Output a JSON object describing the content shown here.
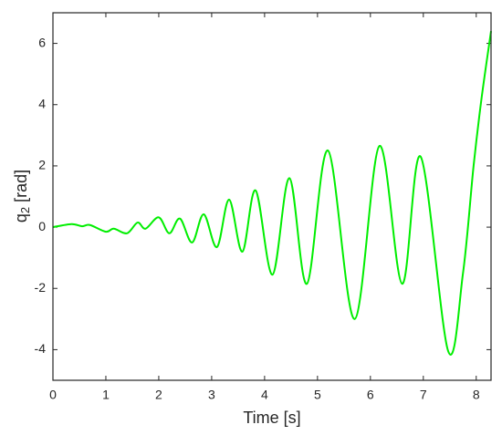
{
  "chart_data": {
    "type": "line",
    "xlabel": "Time [s]",
    "ylabel": [
      "q",
      "2",
      "[rad]"
    ],
    "xlim": [
      0,
      8.28
    ],
    "ylim": [
      -5,
      7
    ],
    "xticks": [
      0,
      1,
      2,
      3,
      4,
      5,
      6,
      7,
      8
    ],
    "yticks": [
      -4,
      -2,
      0,
      2,
      4,
      6
    ],
    "series": [
      {
        "color": "#00ee00",
        "x": [
          0,
          0.35,
          0.55,
          0.7,
          1.0,
          1.15,
          1.4,
          1.6,
          1.75,
          2.0,
          2.2,
          2.4,
          2.63,
          2.85,
          3.1,
          3.33,
          3.58,
          3.83,
          4.15,
          4.47,
          4.8,
          5.2,
          5.7,
          6.17,
          6.6,
          6.95,
          7.47,
          7.75,
          7.95,
          8.1,
          8.28
        ],
        "values": [
          0,
          0.1,
          0.03,
          0.07,
          -0.15,
          -0.05,
          -0.2,
          0.15,
          -0.05,
          0.32,
          -0.2,
          0.28,
          -0.5,
          0.42,
          -0.65,
          0.9,
          -0.8,
          1.2,
          -1.55,
          1.6,
          -1.85,
          2.5,
          -3.0,
          2.65,
          -1.85,
          2.3,
          -4.05,
          -1.5,
          2.0,
          4.2,
          6.4
        ]
      }
    ]
  }
}
